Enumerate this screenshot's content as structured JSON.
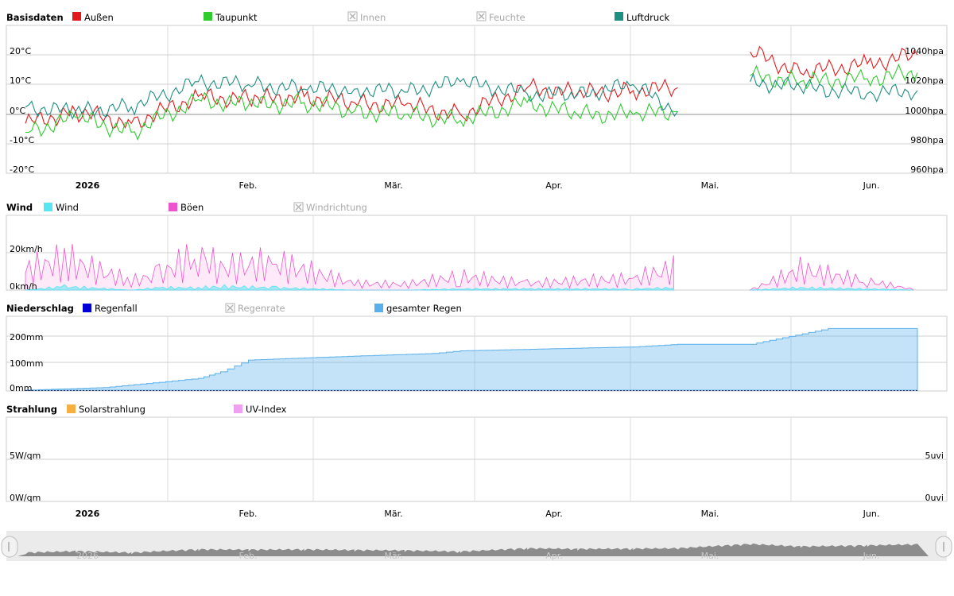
{
  "colors": {
    "aussen": "#e31a1c",
    "taupunkt": "#2ecc2e",
    "luftdruck": "#1f8f82",
    "wind": "#5ae6f0",
    "boeen": "#ee55cc",
    "regenfall": "#0000d6",
    "gesamter_regen": "#5ab0ea",
    "solar": "#f5b041",
    "uv": "#f0a0f0",
    "disabled": "#b0b0b0"
  },
  "months": [
    "2026",
    "Feb.",
    "Mär.",
    "Apr.",
    "Mai.",
    "Jun."
  ],
  "panels": {
    "basis": {
      "title": "Basisdaten",
      "legend": [
        {
          "label": "Außen",
          "color": "#e31a1c",
          "enabled": true
        },
        {
          "label": "Taupunkt",
          "color": "#2ecc2e",
          "enabled": true
        },
        {
          "label": "Innen",
          "color": "#b0b0b0",
          "enabled": false
        },
        {
          "label": "Feuchte",
          "color": "#b0b0b0",
          "enabled": false
        },
        {
          "label": "Luftdruck",
          "color": "#1f8f82",
          "enabled": true
        }
      ],
      "y_left_ticks": [
        "20°C",
        "10°C",
        "0°C",
        "-10°C",
        "-20°C"
      ],
      "y_right_ticks": [
        "1040hpa",
        "1020hpa",
        "1000hpa",
        "980hpa",
        "960hpa"
      ]
    },
    "wind": {
      "title": "Wind",
      "legend": [
        {
          "label": "Wind",
          "color": "#5ae6f0",
          "enabled": true
        },
        {
          "label": "Böen",
          "color": "#ee55cc",
          "enabled": true
        },
        {
          "label": "Windrichtung",
          "color": "#b0b0b0",
          "enabled": false
        }
      ],
      "y_left_ticks": [
        "20km/h",
        "0km/h"
      ]
    },
    "rain": {
      "title": "Niederschlag",
      "legend": [
        {
          "label": "Regenfall",
          "color": "#0000d6",
          "enabled": true
        },
        {
          "label": "Regenrate",
          "color": "#b0b0b0",
          "enabled": false
        },
        {
          "label": "gesamter Regen",
          "color": "#5ab0ea",
          "enabled": true
        }
      ],
      "y_left_ticks": [
        "200mm",
        "100mm",
        "0mm"
      ]
    },
    "solar": {
      "title": "Strahlung",
      "legend": [
        {
          "label": "Solarstrahlung",
          "color": "#f5b041",
          "enabled": true
        },
        {
          "label": "UV-Index",
          "color": "#f0a0f0",
          "enabled": true
        }
      ],
      "y_left_ticks": [
        "5W/qm",
        "0W/qm"
      ],
      "y_right_ticks": [
        "5uvi",
        "0uvi"
      ]
    }
  },
  "chart_data": [
    {
      "type": "line",
      "title": "Basisdaten",
      "x": [
        "2026-01-01",
        "2026-01-10",
        "2026-01-20",
        "2026-02-01",
        "2026-02-10",
        "2026-02-20",
        "2026-03-01",
        "2026-03-10",
        "2026-03-20",
        "2026-04-01",
        "2026-04-10",
        "2026-04-20",
        "2026-04-28",
        "2026-05-11",
        "2026-05-20",
        "2026-06-01",
        "2026-06-10"
      ],
      "series": [
        {
          "name": "Außen",
          "unit": "°C",
          "axis": "left",
          "values": [
            -3,
            1,
            -3,
            6,
            5,
            6,
            4,
            3,
            0,
            9,
            7,
            8,
            9,
            21,
            14,
            17,
            20
          ]
        },
        {
          "name": "Taupunkt",
          "unit": "°C",
          "axis": "left",
          "values": [
            -6,
            -1,
            -6,
            5,
            3,
            4,
            1,
            0,
            -2,
            4,
            0,
            0,
            1,
            13,
            11,
            12,
            14
          ]
        },
        {
          "name": "Luftdruck",
          "unit": "hpa",
          "axis": "right",
          "values": [
            1005,
            1002,
            1005,
            1022,
            1020,
            1017,
            1017,
            1015,
            1022,
            1014,
            1013,
            1020,
            1002,
            1022,
            1018,
            1014,
            1016
          ]
        }
      ],
      "ylim_left": [
        -20,
        20
      ],
      "ylim_right": [
        960,
        1040
      ]
    },
    {
      "type": "area",
      "title": "Wind",
      "x": [
        "2026-01-01",
        "2026-01-08",
        "2026-01-20",
        "2026-01-25",
        "2026-02-01",
        "2026-02-05",
        "2026-02-15",
        "2026-03-01",
        "2026-03-10",
        "2026-03-20",
        "2026-04-01",
        "2026-04-10",
        "2026-04-20",
        "2026-04-28",
        "2026-05-11",
        "2026-05-20",
        "2026-06-01",
        "2026-06-10"
      ],
      "series": [
        {
          "name": "Wind",
          "unit": "km/h",
          "values": [
            0,
            3,
            0,
            2,
            2,
            3,
            2,
            0,
            0,
            1,
            1,
            1,
            1,
            2,
            0,
            2,
            1,
            0
          ]
        },
        {
          "name": "Böen",
          "unit": "km/h",
          "values": [
            18,
            27,
            8,
            14,
            32,
            20,
            24,
            6,
            5,
            12,
            6,
            8,
            10,
            20,
            0,
            18,
            8,
            0
          ]
        }
      ],
      "ylim": [
        0,
        40
      ]
    },
    {
      "type": "area",
      "title": "Niederschlag",
      "x": [
        "2026-01-01",
        "2026-01-15",
        "2026-01-25",
        "2026-02-01",
        "2026-02-05",
        "2026-02-10",
        "2026-03-01",
        "2026-03-15",
        "2026-03-20",
        "2026-04-20",
        "2026-04-28",
        "2026-05-11",
        "2026-05-25",
        "2026-06-10"
      ],
      "series": [
        {
          "name": "gesamter Regen",
          "unit": "mm",
          "values": [
            0,
            10,
            30,
            45,
            70,
            115,
            130,
            140,
            150,
            165,
            175,
            175,
            235,
            235
          ]
        },
        {
          "name": "Regenfall",
          "unit": "mm",
          "values": [
            0,
            0,
            0,
            0,
            0,
            0,
            0,
            0,
            0,
            0,
            0,
            0,
            0,
            0
          ]
        }
      ],
      "ylim": [
        0,
        260
      ]
    },
    {
      "type": "line",
      "title": "Strahlung",
      "series": [
        {
          "name": "Solarstrahlung",
          "unit": "W/qm",
          "values": []
        },
        {
          "name": "UV-Index",
          "unit": "uvi",
          "values": []
        }
      ],
      "ylim_left": [
        0,
        5
      ],
      "ylim_right": [
        0,
        5
      ]
    }
  ]
}
